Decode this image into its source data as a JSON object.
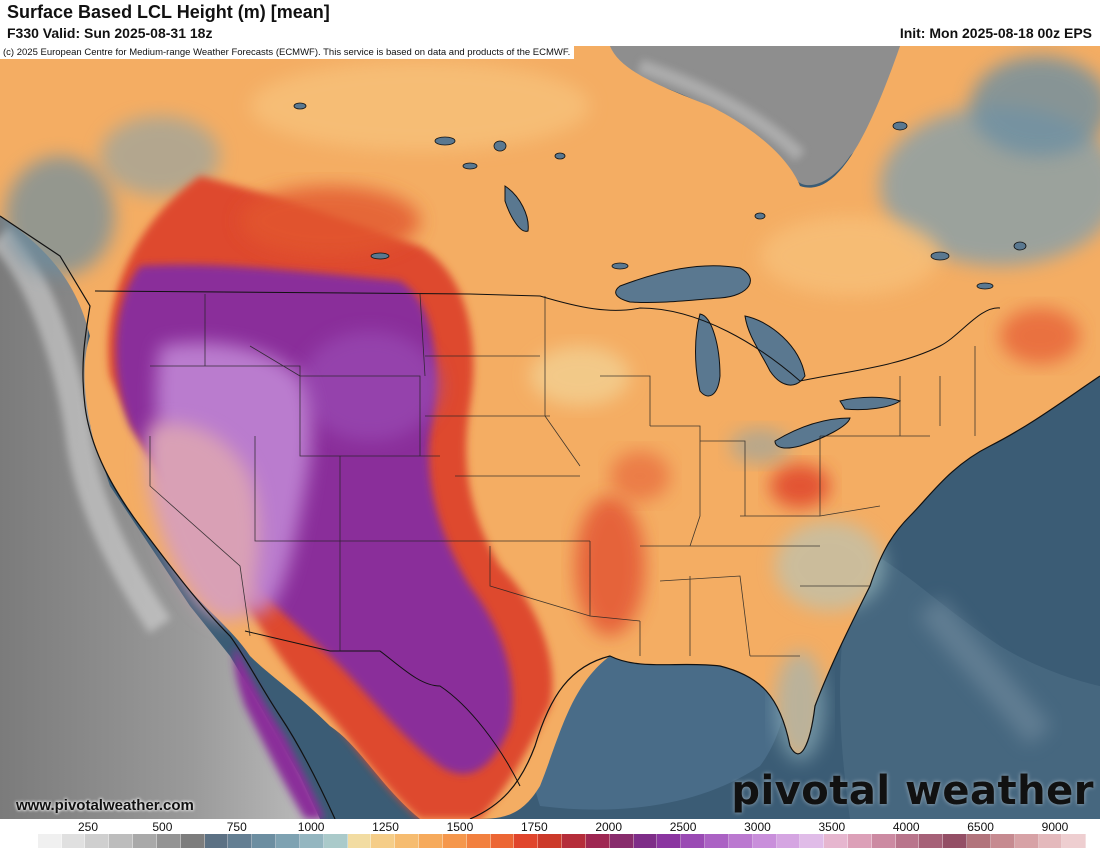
{
  "header": {
    "title": "Surface Based LCL Height (m) [mean]",
    "valid": "F330 Valid: Sun 2025-08-31 18z",
    "init": "Init: Mon 2025-08-18 00z EPS"
  },
  "map": {
    "copyright": "(c) 2025 European Centre for Medium-range Weather Forecasts (ECMWF). This service is based on data and products of the ECMWF.",
    "website": "www.pivotalweather.com",
    "brand": "pivotal weather",
    "colors": {
      "ocean": "#3a5a72",
      "gulf": "#476a86",
      "pacific_far": "#8d8d8d",
      "canada_low": "#f6b774",
      "plains_orange": "#f59a4a",
      "red_band": "#e0452c",
      "purple_mountain": "#8a2f9a",
      "pink_desert": "#d9a0b5",
      "lakes": "#5a7890"
    }
  },
  "colorbar": {
    "labels": [
      "250",
      "500",
      "750",
      "1000",
      "1250",
      "1500",
      "1750",
      "2000",
      "2500",
      "3000",
      "3500",
      "4000",
      "6500",
      "9000"
    ],
    "colors": [
      "#ffffff",
      "#f0f0f0",
      "#e0e0e0",
      "#cfcfcf",
      "#bdbdbd",
      "#a9a9a9",
      "#949494",
      "#7d7d7d",
      "#5c7184",
      "#647f93",
      "#6c8ea1",
      "#7ea2b2",
      "#94b6c0",
      "#aacaca",
      "#f2dca2",
      "#f5cd88",
      "#f6bc70",
      "#f6aa5c",
      "#f5974c",
      "#f2803f",
      "#ec6634",
      "#e0452c",
      "#cc3a2a",
      "#b52d3a",
      "#9e2752",
      "#882c6c",
      "#7e2d88",
      "#8a35a0",
      "#9a4bb4",
      "#ab62c4",
      "#bb79d0",
      "#c98fdb",
      "#d5a5e2",
      "#e0bce8",
      "#e6b6cf",
      "#dca0b8",
      "#cc8aa2",
      "#b9758c",
      "#a66178",
      "#944f66",
      "#b2747c",
      "#c68a90",
      "#d7a2a6",
      "#e4b9bc",
      "#eeced0"
    ]
  }
}
